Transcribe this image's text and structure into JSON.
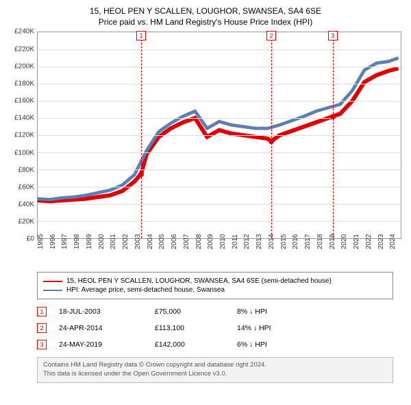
{
  "title": {
    "line1": "15, HEOL PEN Y SCALLEN, LOUGHOR, SWANSEA, SA4 6SE",
    "line2": "Price paid vs. HM Land Registry's House Price Index (HPI)",
    "fontsize": 12,
    "color": "#222222"
  },
  "chart": {
    "type": "line",
    "background_color": "#ffffff",
    "border_color": "#999999",
    "grid_color": "#dddddd",
    "y": {
      "min": 0,
      "max": 240000,
      "ticks": [
        0,
        20000,
        40000,
        60000,
        80000,
        100000,
        120000,
        140000,
        160000,
        180000,
        200000,
        220000,
        240000
      ],
      "tick_labels": [
        "£0",
        "£20K",
        "£40K",
        "£60K",
        "£80K",
        "£100K",
        "£120K",
        "£140K",
        "£160K",
        "£180K",
        "£200K",
        "£220K",
        "£240K"
      ],
      "label_fontsize": 10
    },
    "x": {
      "min": 1995,
      "max": 2025,
      "ticks": [
        1995,
        1996,
        1997,
        1998,
        1999,
        2000,
        2001,
        2002,
        2003,
        2004,
        2005,
        2006,
        2007,
        2008,
        2009,
        2010,
        2011,
        2012,
        2013,
        2014,
        2015,
        2016,
        2017,
        2018,
        2019,
        2020,
        2021,
        2022,
        2023,
        2024
      ],
      "label_fontsize": 10
    },
    "series": [
      {
        "name": "15, HEOL PEN Y SCALLEN, LOUGHOR, SWANSEA, SA4 6SE (semi-detached house)",
        "color": "#e00000",
        "line_width": 2,
        "data": [
          [
            1995,
            44000
          ],
          [
            1996,
            43000
          ],
          [
            1997,
            44000
          ],
          [
            1998,
            45000
          ],
          [
            1999,
            46000
          ],
          [
            2000,
            48000
          ],
          [
            2001,
            50000
          ],
          [
            2002,
            55000
          ],
          [
            2003,
            66000
          ],
          [
            2003.55,
            75000
          ],
          [
            2004,
            98000
          ],
          [
            2005,
            118000
          ],
          [
            2006,
            128000
          ],
          [
            2007,
            135000
          ],
          [
            2008,
            140000
          ],
          [
            2009,
            118000
          ],
          [
            2010,
            126000
          ],
          [
            2011,
            122000
          ],
          [
            2012,
            120000
          ],
          [
            2013,
            118000
          ],
          [
            2014,
            116000
          ],
          [
            2014.31,
            113100
          ],
          [
            2015,
            120000
          ],
          [
            2016,
            125000
          ],
          [
            2017,
            130000
          ],
          [
            2018,
            135000
          ],
          [
            2019,
            140000
          ],
          [
            2019.39,
            142000
          ],
          [
            2020,
            145000
          ],
          [
            2021,
            160000
          ],
          [
            2022,
            182000
          ],
          [
            2023,
            190000
          ],
          [
            2024,
            195000
          ],
          [
            2024.8,
            198000
          ]
        ]
      },
      {
        "name": "HPI: Average price, semi-detached house, Swansea",
        "color": "#5b7fb5",
        "line_width": 1.6,
        "data": [
          [
            1995,
            46000
          ],
          [
            1996,
            45000
          ],
          [
            1997,
            47000
          ],
          [
            1998,
            48000
          ],
          [
            1999,
            50000
          ],
          [
            2000,
            53000
          ],
          [
            2001,
            56000
          ],
          [
            2002,
            62000
          ],
          [
            2003,
            74000
          ],
          [
            2004,
            102000
          ],
          [
            2005,
            124000
          ],
          [
            2006,
            134000
          ],
          [
            2007,
            142000
          ],
          [
            2008,
            148000
          ],
          [
            2009,
            128000
          ],
          [
            2010,
            136000
          ],
          [
            2011,
            132000
          ],
          [
            2012,
            130000
          ],
          [
            2013,
            128000
          ],
          [
            2014,
            128000
          ],
          [
            2015,
            132000
          ],
          [
            2016,
            137000
          ],
          [
            2017,
            142000
          ],
          [
            2018,
            148000
          ],
          [
            2019,
            152000
          ],
          [
            2020,
            156000
          ],
          [
            2021,
            172000
          ],
          [
            2022,
            196000
          ],
          [
            2023,
            204000
          ],
          [
            2024,
            206000
          ],
          [
            2024.8,
            210000
          ]
        ]
      }
    ],
    "markers": [
      {
        "n": "1",
        "x": 2003.55,
        "y": 75000,
        "point_color": "#e00000"
      },
      {
        "n": "2",
        "x": 2014.31,
        "y": 113100,
        "point_color": "#e00000"
      },
      {
        "n": "3",
        "x": 2019.39,
        "y": 142000,
        "point_color": "#e00000"
      }
    ],
    "marker_line_color": "#e00000",
    "marker_box_border": "#e00000"
  },
  "legend": {
    "items": [
      {
        "label": "15, HEOL PEN Y SCALLEN, LOUGHOR, SWANSEA, SA4 6SE (semi-detached house)",
        "color": "#e00000"
      },
      {
        "label": "HPI: Average price, semi-detached house, Swansea",
        "color": "#5b7fb5"
      }
    ],
    "border_color": "#888888",
    "fontsize": 10
  },
  "events": [
    {
      "n": "1",
      "date": "18-JUL-2003",
      "price": "£75,000",
      "delta": "8% ↓ HPI"
    },
    {
      "n": "2",
      "date": "24-APR-2014",
      "price": "£113,100",
      "delta": "14% ↓ HPI"
    },
    {
      "n": "3",
      "date": "24-MAY-2019",
      "price": "£142,000",
      "delta": "6% ↓ HPI"
    }
  ],
  "attribution": {
    "line1": "Contains HM Land Registry data © Crown copyright and database right 2024.",
    "line2": "This data is licensed under the Open Government Licence v3.0.",
    "background": "#f3f3f3",
    "border_color": "#bbbbbb",
    "color": "#555555"
  }
}
